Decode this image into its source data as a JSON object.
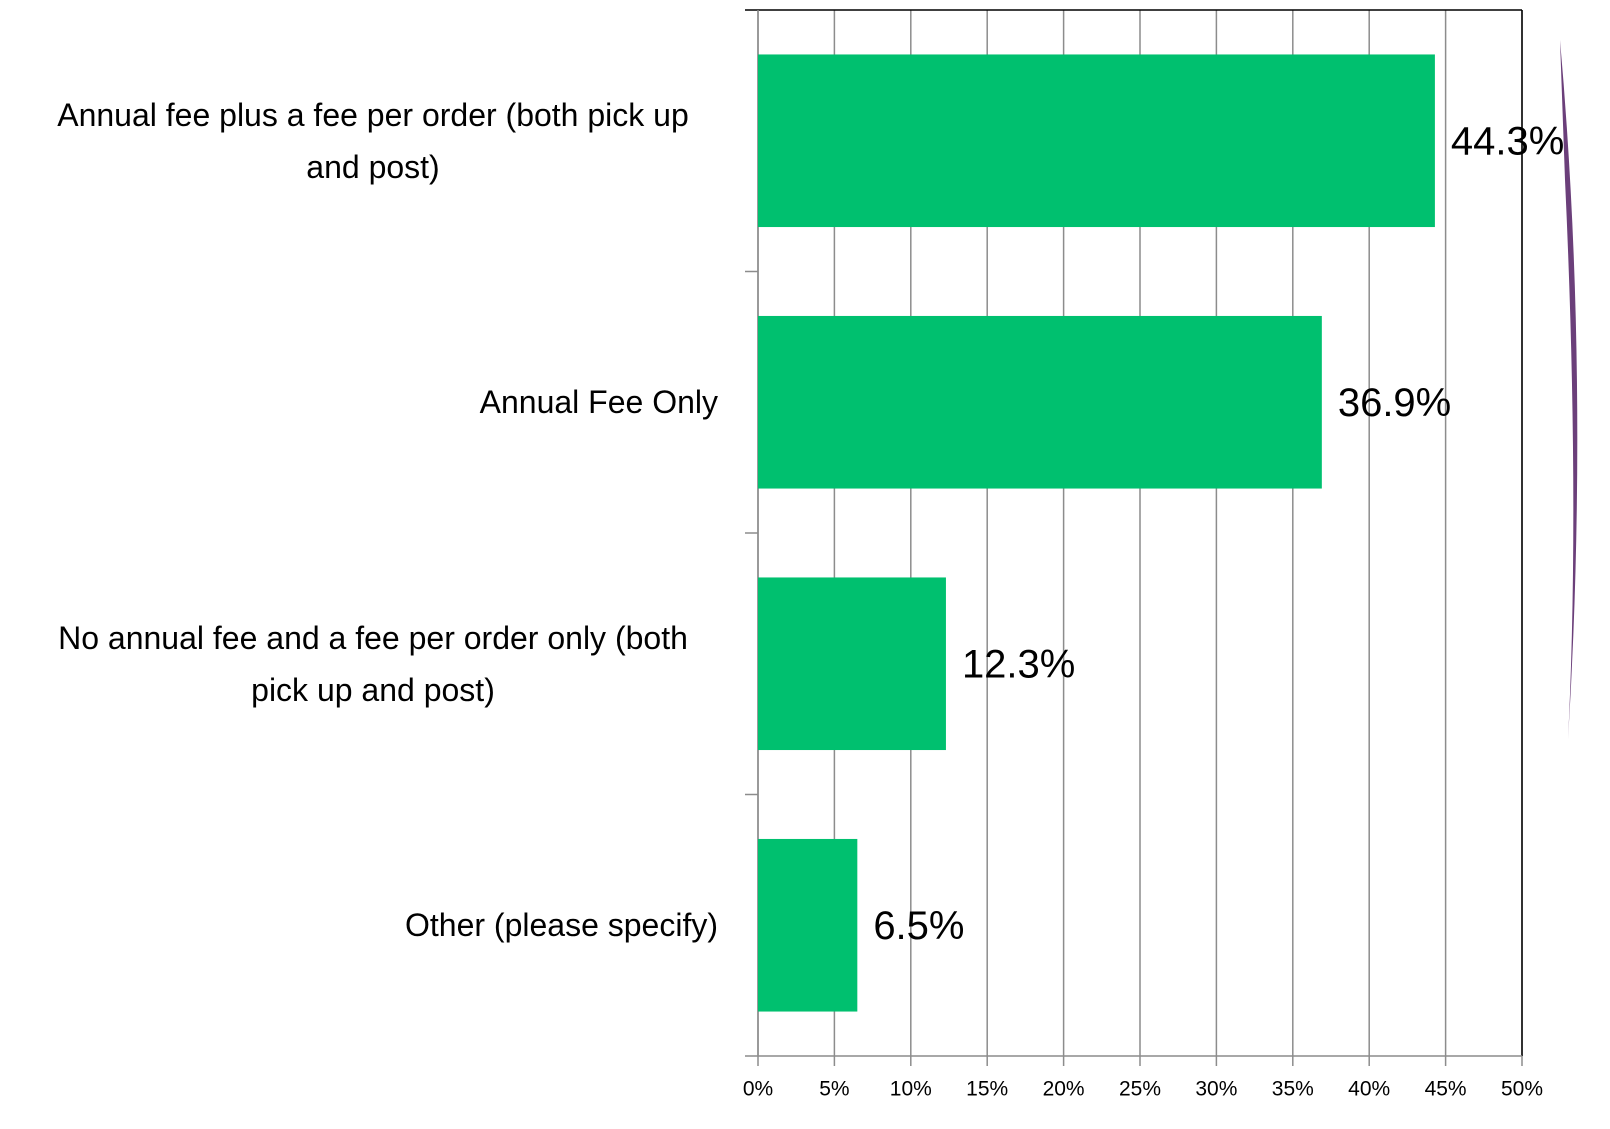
{
  "chart_data": {
    "type": "bar",
    "orientation": "horizontal",
    "categories": [
      "Annual fee plus a fee per order (both pick up and post)",
      "Annual Fee Only",
      "No annual fee and a fee per order only (both pick up and post)",
      "Other (please specify)"
    ],
    "values": [
      44.3,
      36.9,
      12.3,
      6.5
    ],
    "value_labels": [
      "44.3%",
      "36.9%",
      "12.3%",
      "6.5%"
    ],
    "color": "#00c06f",
    "xlim": [
      0,
      50
    ],
    "xticks": [
      {
        "value": 0,
        "label": "0%"
      },
      {
        "value": 5,
        "label": "5%"
      },
      {
        "value": 10,
        "label": "10%"
      },
      {
        "value": 15,
        "label": "15%"
      },
      {
        "value": 20,
        "label": "20%"
      },
      {
        "value": 25,
        "label": "25%"
      },
      {
        "value": 30,
        "label": "30%"
      },
      {
        "value": 35,
        "label": "35%"
      },
      {
        "value": 40,
        "label": "40%"
      },
      {
        "value": 45,
        "label": "45%"
      },
      {
        "value": 50,
        "label": "50%"
      }
    ],
    "grid": true
  }
}
